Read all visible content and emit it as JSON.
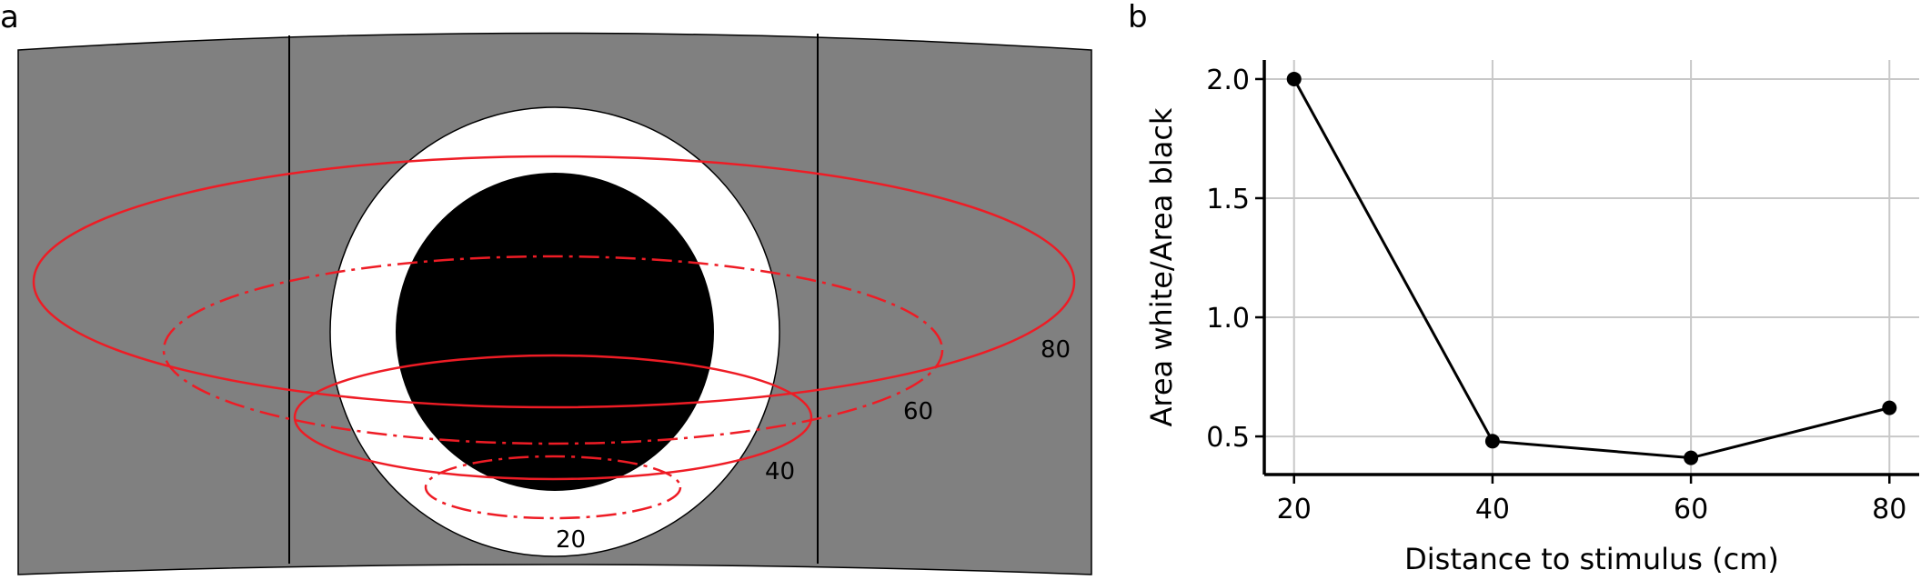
{
  "panels": {
    "a": {
      "letter": "a"
    },
    "b": {
      "letter": "b"
    }
  },
  "stimulus": {
    "background_color": "#808080",
    "outer_color": "#ffffff",
    "inner_color": "#000000",
    "contour_color": "#ee1c25"
  },
  "contours": [
    {
      "label": "20",
      "style": "dash-dot"
    },
    {
      "label": "40",
      "style": "solid"
    },
    {
      "label": "60",
      "style": "dash-dot"
    },
    {
      "label": "80",
      "style": "solid"
    }
  ],
  "chart_data": {
    "type": "line",
    "x": [
      20,
      40,
      60,
      80
    ],
    "y": [
      2.0,
      0.48,
      0.41,
      0.62
    ],
    "xticks": [
      "20",
      "40",
      "60",
      "80"
    ],
    "yticks": [
      "0.5",
      "1.0",
      "1.5",
      "2.0"
    ],
    "xlabel": "Distance to stimulus (cm)",
    "ylabel": "Area white/Area black",
    "xlim": [
      17,
      83
    ],
    "ylim": [
      0.34,
      2.08
    ],
    "grid": true,
    "line_color": "#000000"
  }
}
